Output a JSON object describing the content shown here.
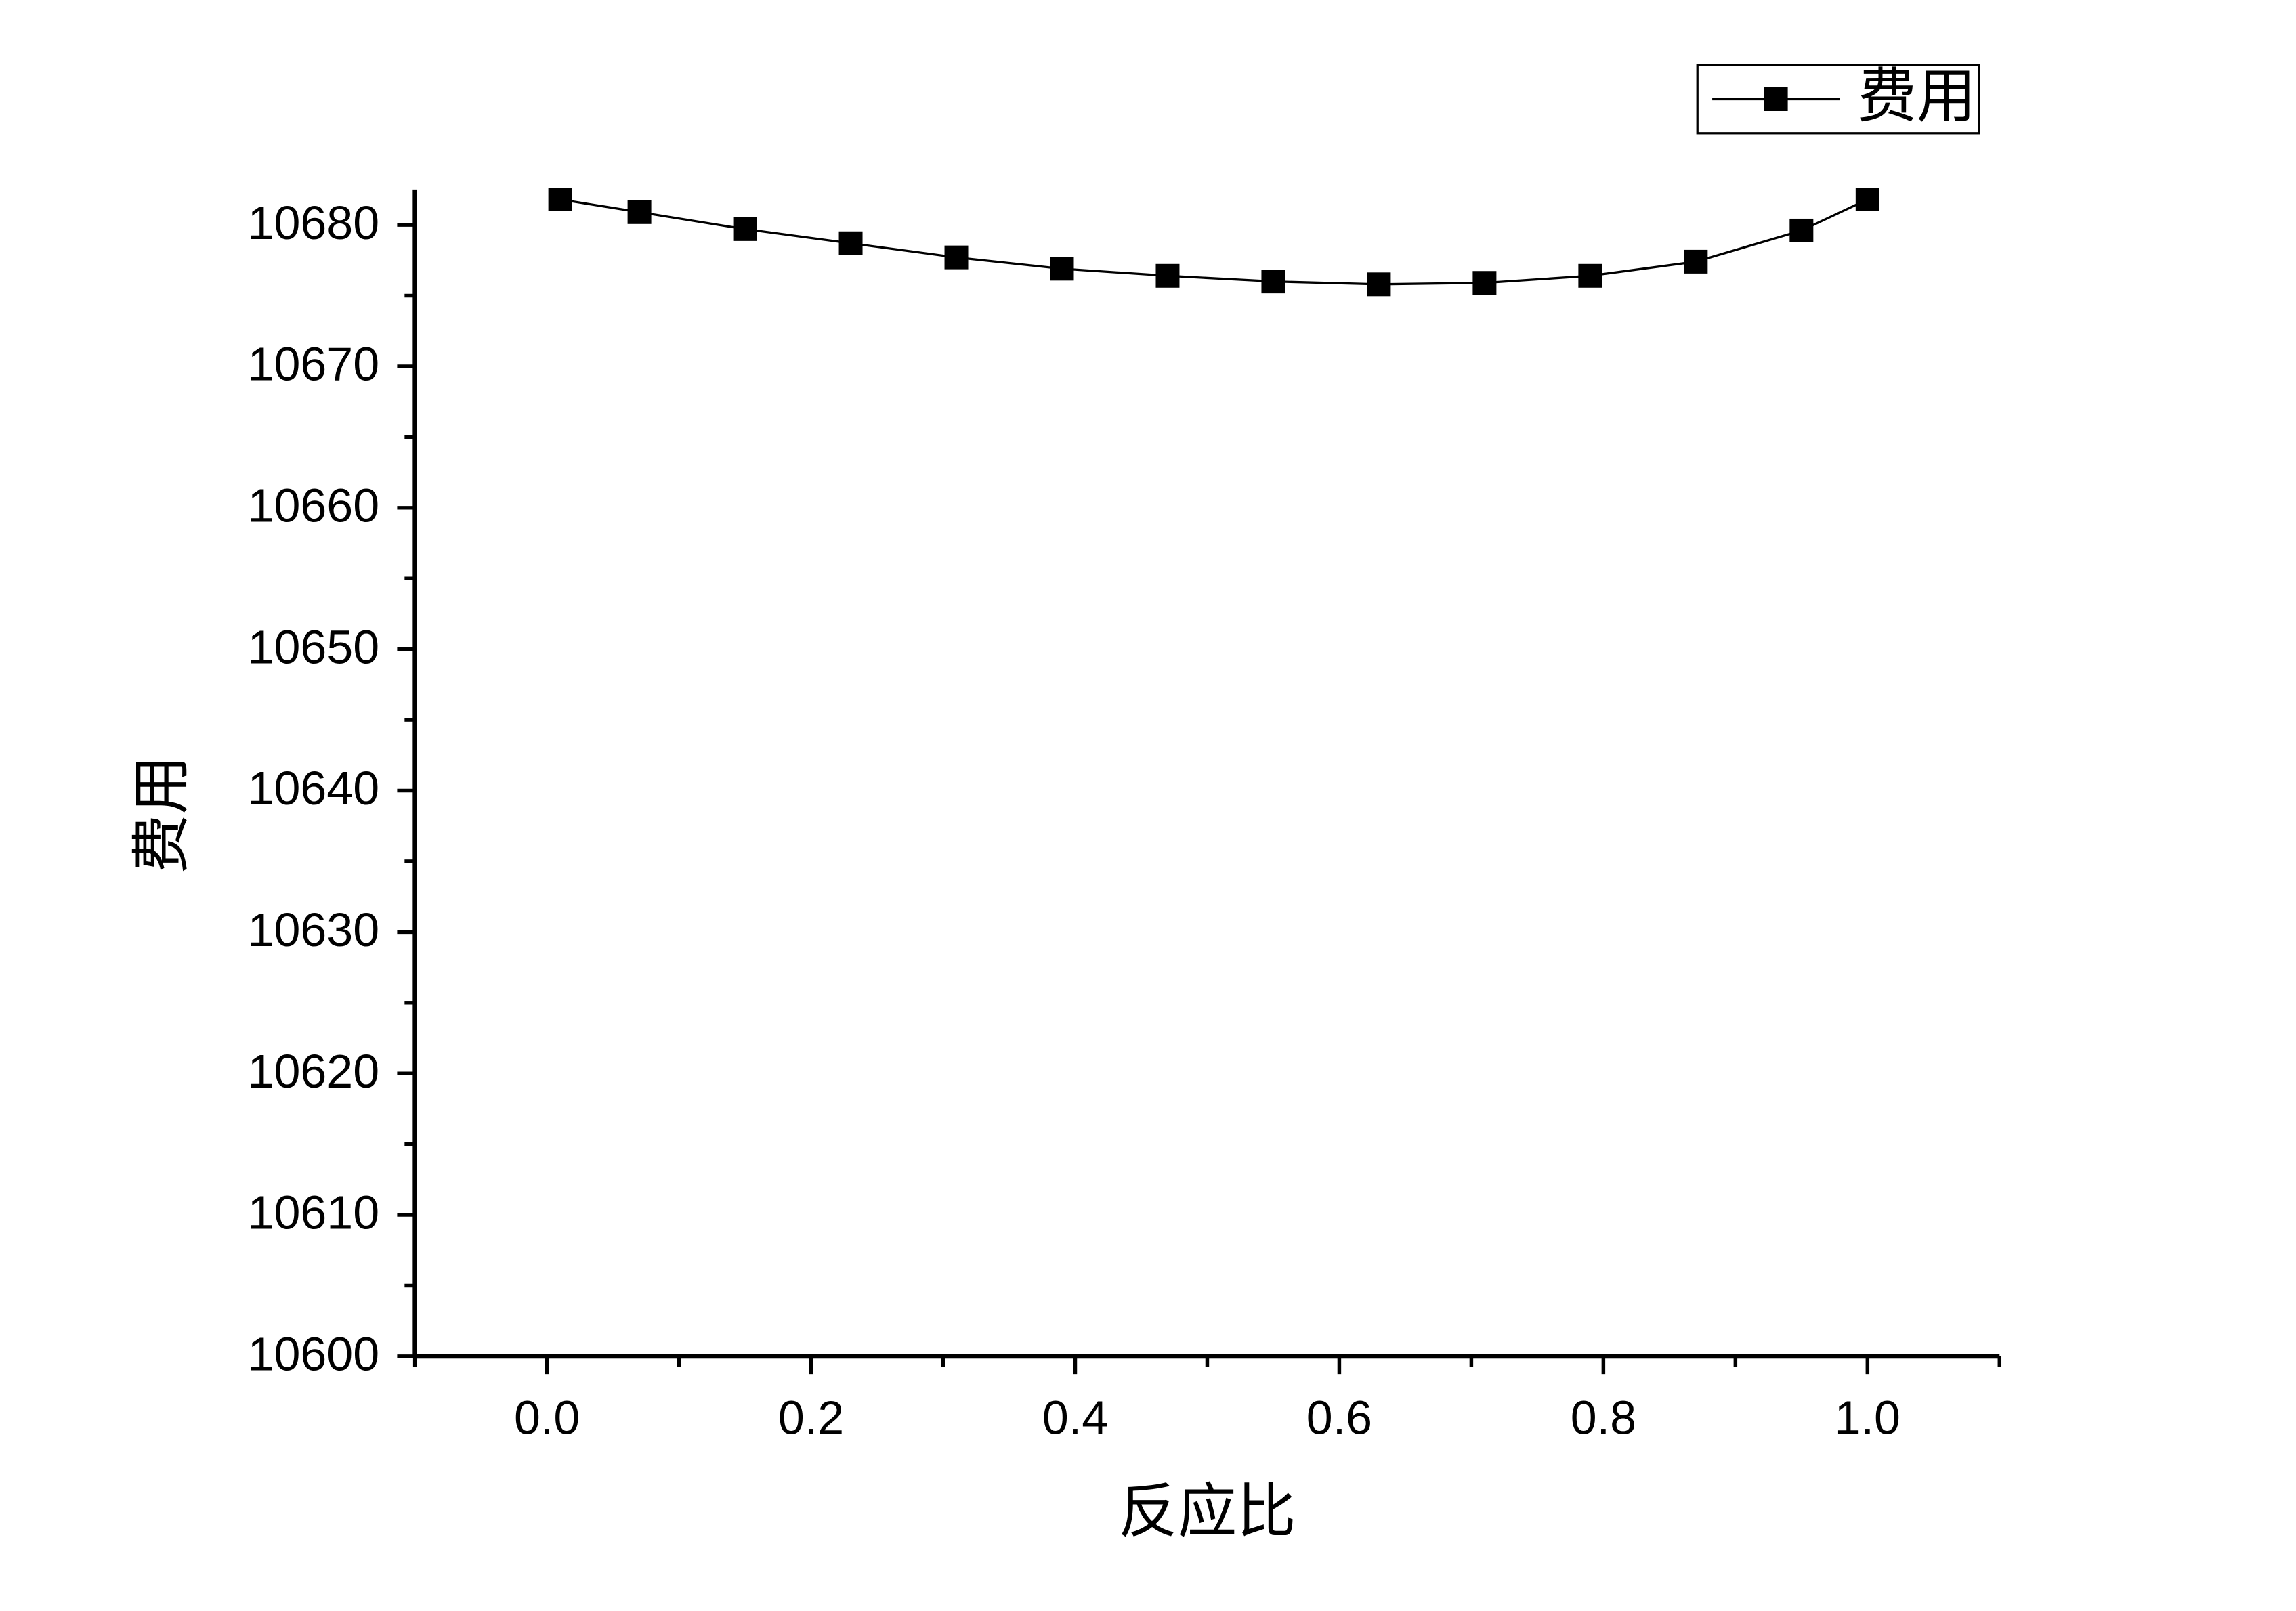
{
  "chart_data": {
    "type": "line",
    "xlabel": "反应比",
    "ylabel": "费用",
    "x": [
      0.01,
      0.07,
      0.15,
      0.23,
      0.31,
      0.39,
      0.47,
      0.55,
      0.63,
      0.71,
      0.79,
      0.87,
      0.95,
      1.0
    ],
    "series": [
      {
        "name": "费用",
        "color": "#000000",
        "values": [
          10681.8,
          10680.9,
          10679.7,
          10678.7,
          10677.7,
          10676.9,
          10676.4,
          10676.0,
          10675.8,
          10675.9,
          10676.4,
          10677.4,
          10679.6,
          10681.8
        ]
      }
    ],
    "xlim": [
      -0.1,
      1.1
    ],
    "ylim": [
      10600,
      10682.5
    ],
    "xticks": [
      {
        "value": 0,
        "label": "0.0"
      },
      0.2,
      0.4,
      0.6,
      0.8,
      {
        "value": 1,
        "label": "1.0"
      }
    ],
    "xminorticks": [
      -0.1,
      0.1,
      0.3,
      0.5,
      0.7,
      0.9,
      1.1
    ],
    "yticks": [
      10600,
      10610,
      10620,
      10630,
      10640,
      10650,
      10660,
      10670,
      10680
    ],
    "yminorticks": [
      10605,
      10615,
      10625,
      10635,
      10645,
      10655,
      10665,
      10675
    ],
    "legend": "top-right",
    "grid": false
  }
}
